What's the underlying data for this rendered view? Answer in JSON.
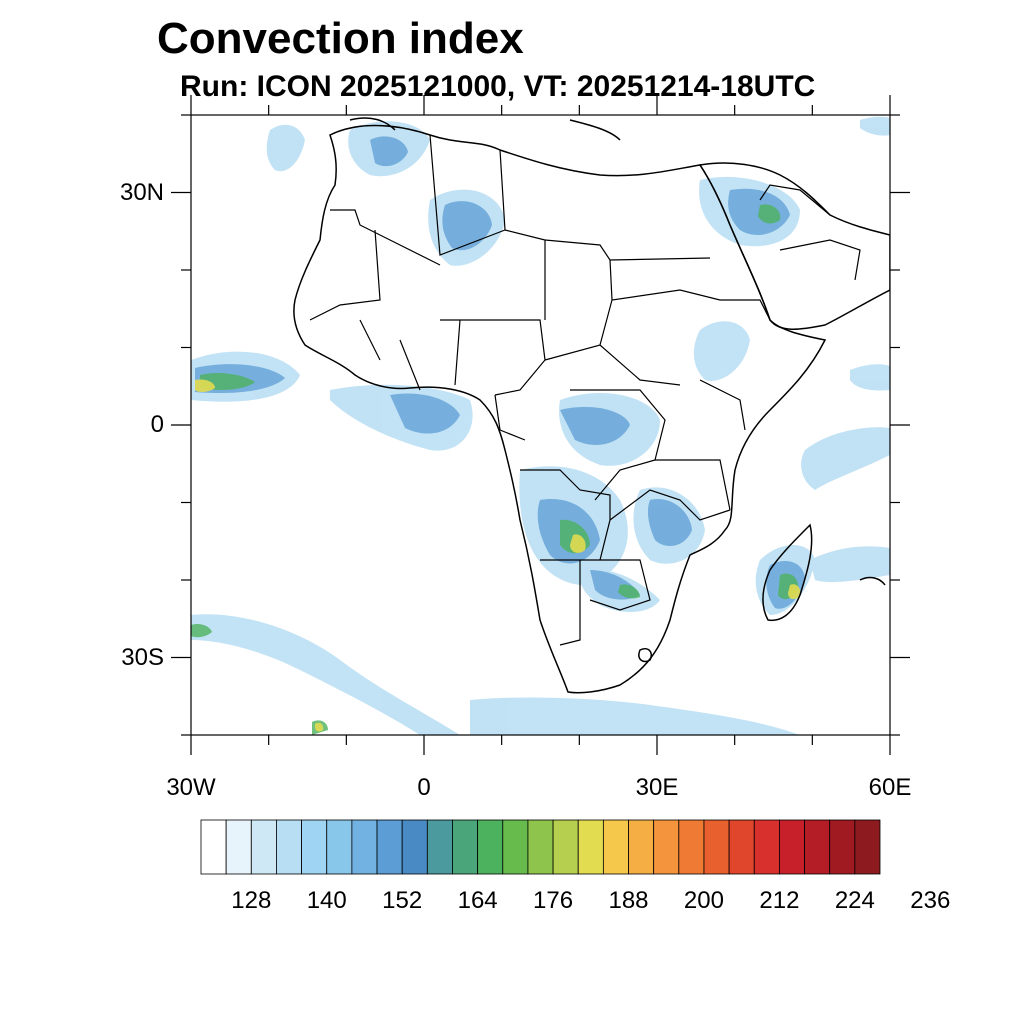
{
  "title": "Convection index",
  "subtitle": "Run: ICON 2025121000,  VT: 20251214-18UTC",
  "map": {
    "lon_range": [
      -30,
      60
    ],
    "lat_range": [
      -40,
      40
    ],
    "lat_labels": [
      {
        "lat": 30,
        "text": "30N"
      },
      {
        "lat": 0,
        "text": "0"
      },
      {
        "lat": -30,
        "text": "30S"
      }
    ],
    "lon_labels": [
      {
        "lon": -30,
        "text": "30W"
      },
      {
        "lon": 0,
        "text": "0"
      },
      {
        "lon": 30,
        "text": "30E"
      },
      {
        "lon": 60,
        "text": "60E"
      }
    ]
  },
  "colorbar": {
    "colors": [
      "#ffffff",
      "#e8f4fb",
      "#cfe8f6",
      "#b7def3",
      "#9fd5f2",
      "#88c6ea",
      "#72b2e2",
      "#5c9dd5",
      "#4a8ac4",
      "#4a9a9e",
      "#4aa67a",
      "#4db25e",
      "#67bb4c",
      "#8ec44c",
      "#b6cf4e",
      "#e2dc50",
      "#f5c84c",
      "#f4ae44",
      "#f4943c",
      "#ef7a34",
      "#e8602e",
      "#e0462c",
      "#d8302c",
      "#c8202a",
      "#b41c26",
      "#a01a22",
      "#8c1a1e"
    ],
    "labels": [
      "128",
      "140",
      "152",
      "164",
      "176",
      "188",
      "200",
      "212",
      "224",
      "236"
    ]
  }
}
